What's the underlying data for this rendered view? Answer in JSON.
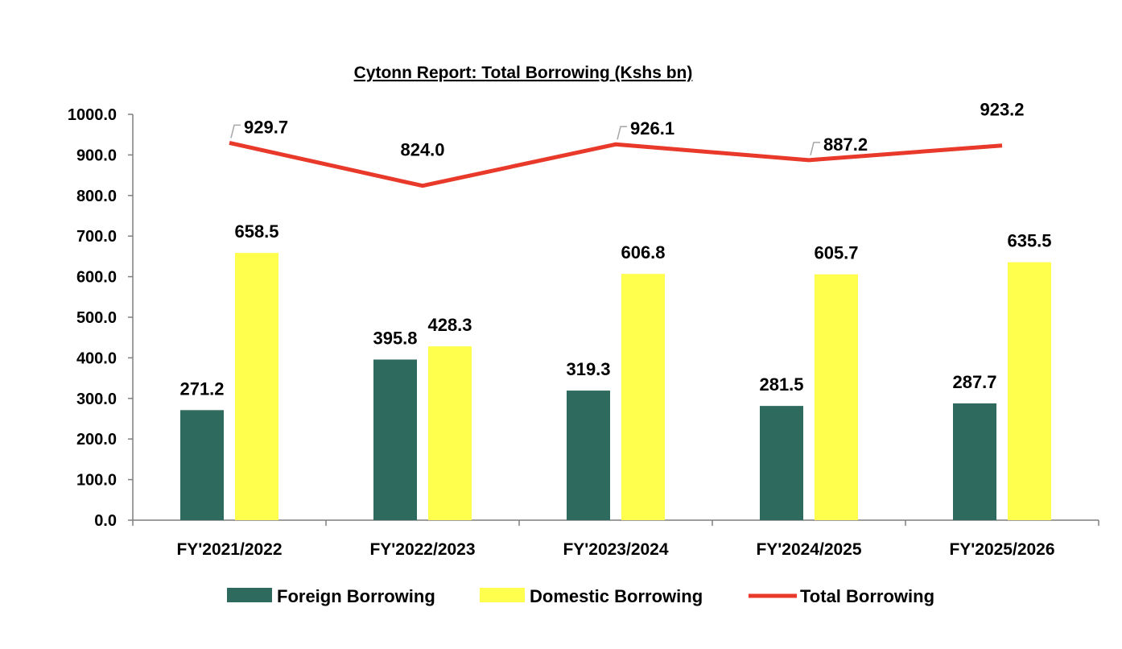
{
  "chart_data": {
    "type": "bar",
    "title": "Cytonn Report: Total Borrowing (Kshs bn)",
    "categories": [
      "FY'2021/2022",
      "FY'2022/2023",
      "FY'2023/2024",
      "FY'2024/2025",
      "FY'2025/2026"
    ],
    "series": [
      {
        "name": "Foreign Borrowing",
        "type": "bar",
        "color": "#2E6B5E",
        "values": [
          271.2,
          395.8,
          319.3,
          281.5,
          287.7
        ]
      },
      {
        "name": "Domestic Borrowing",
        "type": "bar",
        "color": "#FFFF4D",
        "values": [
          658.5,
          428.3,
          606.8,
          605.7,
          635.5
        ]
      },
      {
        "name": "Total Borrowing",
        "type": "line",
        "color": "#E8392A",
        "values": [
          929.7,
          824.0,
          926.1,
          887.2,
          923.2
        ]
      }
    ],
    "ylim": [
      0,
      1000
    ],
    "yticks": [
      "0.0",
      "100.0",
      "200.0",
      "300.0",
      "400.0",
      "500.0",
      "600.0",
      "700.0",
      "800.0",
      "900.0",
      "1000.0"
    ],
    "ytick_values": [
      0,
      100,
      200,
      300,
      400,
      500,
      600,
      700,
      800,
      900,
      1000
    ],
    "bar_labels": [
      [
        "271.2",
        "395.8",
        "319.3",
        "281.5",
        "287.7"
      ],
      [
        "658.5",
        "428.3",
        "606.8",
        "605.7",
        "635.5"
      ]
    ],
    "line_labels": [
      "929.7",
      "824.0",
      "926.1",
      "887.2",
      "923.2"
    ],
    "grid": false,
    "legend": "bottom"
  }
}
